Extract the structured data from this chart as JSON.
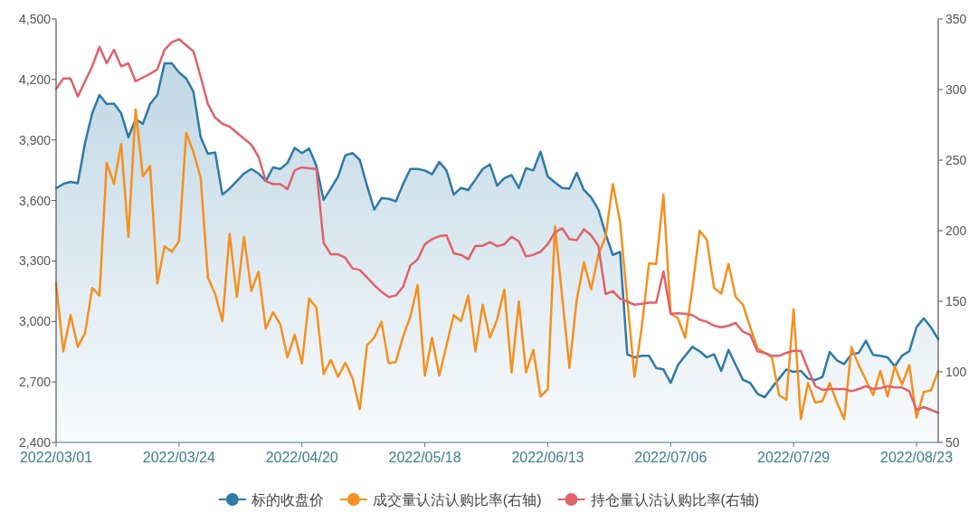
{
  "chart_data": {
    "type": "line",
    "legend": "bottom",
    "categories": [
      "2022/03/01",
      null,
      null,
      null,
      null,
      null,
      null,
      null,
      null,
      null,
      null,
      null,
      null,
      null,
      null,
      null,
      null,
      "2022/03/24",
      null,
      null,
      null,
      null,
      null,
      null,
      null,
      null,
      null,
      null,
      null,
      null,
      null,
      null,
      null,
      null,
      "2022/04/20",
      null,
      null,
      null,
      null,
      null,
      null,
      null,
      null,
      null,
      null,
      null,
      null,
      null,
      null,
      null,
      null,
      "2022/05/18",
      null,
      null,
      null,
      null,
      null,
      null,
      null,
      null,
      null,
      null,
      null,
      null,
      null,
      null,
      null,
      null,
      "2022/06/13",
      null,
      null,
      null,
      null,
      null,
      null,
      null,
      null,
      null,
      null,
      null,
      null,
      null,
      null,
      null,
      null,
      "2022/07/06",
      null,
      null,
      null,
      null,
      null,
      null,
      null,
      null,
      null,
      null,
      null,
      null,
      null,
      null,
      null,
      null,
      "2022/07/29",
      null,
      null,
      null,
      null,
      null,
      null,
      null,
      null,
      null,
      null,
      null,
      null,
      null,
      null,
      null,
      null,
      "2022/08/23",
      null,
      null,
      null
    ],
    "ylim": [
      2400,
      4500
    ],
    "yticks": [
      {
        "value": 2400,
        "label": "2,400"
      },
      {
        "value": 2700,
        "label": "2,700"
      },
      {
        "value": 3000,
        "label": "3,000"
      },
      {
        "value": 3300,
        "label": "3,300"
      },
      {
        "value": 3600,
        "label": "3,600"
      },
      {
        "value": 3900,
        "label": "3,900"
      },
      {
        "value": 4200,
        "label": "4,200"
      },
      {
        "value": 4500,
        "label": "4,500"
      }
    ],
    "y2lim": [
      50,
      350
    ],
    "y2ticks": [
      50,
      100,
      150,
      200,
      250,
      300,
      350
    ],
    "series": [
      {
        "name": "标的收盘价",
        "type": "area",
        "color": "#2e7aa6",
        "values": [
          3660,
          3682,
          3692,
          3686,
          3884,
          4033,
          4123,
          4078,
          4081,
          4033,
          3913,
          4003,
          3980,
          4078,
          4123,
          4280,
          4280,
          4235,
          4205,
          4138,
          3913,
          3831,
          3838,
          3629,
          3659,
          3696,
          3734,
          3756,
          3734,
          3696,
          3764,
          3756,
          3786,
          3861,
          3835,
          3858,
          3772,
          3603,
          3659,
          3719,
          3824,
          3835,
          3801,
          3674,
          3555,
          3611,
          3608,
          3596,
          3682,
          3756,
          3756,
          3749,
          3730,
          3791,
          3749,
          3629,
          3662,
          3652,
          3704,
          3756,
          3779,
          3674,
          3711,
          3726,
          3662,
          3760,
          3749,
          3842,
          3719,
          3689,
          3662,
          3659,
          3737,
          3652,
          3615,
          3555,
          3435,
          3330,
          3345,
          2837,
          2822,
          2830,
          2830,
          2769,
          2762,
          2695,
          2784,
          2830,
          2874,
          2852,
          2822,
          2837,
          2755,
          2859,
          2784,
          2710,
          2695,
          2642,
          2624,
          2672,
          2717,
          2762,
          2750,
          2755,
          2717,
          2710,
          2725,
          2849,
          2807,
          2789,
          2837,
          2844,
          2904,
          2834,
          2830,
          2822,
          2777,
          2830,
          2852,
          2971,
          3016,
          2971,
          2912
        ]
      },
      {
        "name": "成交量认沽认购比率(右轴)",
        "axis": "y2",
        "color": "#f5901e",
        "values": [
          162.6,
          114.5,
          140.2,
          117.7,
          127.3,
          159.4,
          154.1,
          248.1,
          233.1,
          261.5,
          195.7,
          285.9,
          238.5,
          246,
          162.6,
          188.9,
          185.1,
          192.5,
          269.4,
          255.6,
          237.4,
          166.9,
          155.1,
          135.9,
          197.9,
          153,
          195.7,
          157.3,
          171.1,
          130.6,
          142.3,
          133.8,
          110.3,
          126.3,
          106,
          151.9,
          145.5,
          98.5,
          108.5,
          96.4,
          106.4,
          95.3,
          73.5,
          118.8,
          124.2,
          135.5,
          106,
          107.1,
          125.2,
          139.1,
          161.5,
          97.4,
          124.2,
          97.4,
          118.8,
          140.2,
          135.9,
          154.1,
          114.5,
          147.6,
          124.2,
          137,
          158.3,
          99.6,
          149.8,
          99.6,
          115.6,
          82.5,
          87.8,
          203.2,
          153,
          102.8,
          150.8,
          177.6,
          158.3,
          182.9,
          195.7,
          233.1,
          206.4,
          150.8,
          96.4,
          131.6,
          176.9,
          176.5,
          225.6,
          141.2,
          138,
          124.2,
          159.4,
          200,
          193.6,
          159.4,
          155.4,
          176.5,
          153,
          147.6,
          131.6,
          116.7,
          113.5,
          110.3,
          83.5,
          80.3,
          144.4,
          66.5,
          92.1,
          78.2,
          79.3,
          92.1,
          78.2,
          66.5,
          117.7,
          104.9,
          94.2,
          83.5,
          100.6,
          82.5,
          103.8,
          91,
          104.9,
          67.5,
          85.7,
          86.8,
          100.6
        ]
      },
      {
        "name": "持仓量认沽认购比率(右轴)",
        "axis": "y2",
        "color": "#e0626a",
        "values": [
          300.4,
          307.9,
          307.9,
          295.1,
          305.8,
          316.5,
          330.3,
          318.6,
          328.2,
          316.5,
          318.6,
          305.8,
          308.5,
          311.1,
          314.3,
          328.2,
          333.5,
          335.7,
          331.4,
          327.1,
          309,
          289.7,
          280.1,
          275.8,
          273.7,
          269.4,
          265.2,
          260.9,
          252.4,
          235.2,
          233,
          233,
          229.5,
          242.7,
          244.9,
          244.2,
          243.8,
          191.5,
          183.3,
          183.3,
          180.8,
          173.3,
          172.2,
          166.9,
          161.5,
          156.8,
          153,
          154.1,
          160.4,
          175.4,
          179.7,
          190.4,
          194,
          196.1,
          196.8,
          184,
          182.9,
          179.7,
          189.3,
          189.3,
          191.9,
          189,
          190.4,
          195.7,
          192.5,
          181.8,
          182.9,
          185.1,
          190.4,
          198.9,
          201.7,
          194,
          193.2,
          201,
          196.8,
          189.3,
          155.1,
          157.3,
          151.9,
          149.8,
          147.6,
          148.3,
          149,
          149.1,
          171.1,
          141.2,
          141.5,
          141.2,
          140.2,
          137,
          135.5,
          132.7,
          131.6,
          132.7,
          134.6,
          128.4,
          126.3,
          114.5,
          113.5,
          111.3,
          111.3,
          113.5,
          114.9,
          114.9,
          101.7,
          89.9,
          87.2,
          87.8,
          87.8,
          87.8,
          86.3,
          87.8,
          89.9,
          87.8,
          88.4,
          89.9,
          88.9,
          88.9,
          86.3,
          73.1,
          75,
          73.1,
          71
        ]
      }
    ]
  }
}
